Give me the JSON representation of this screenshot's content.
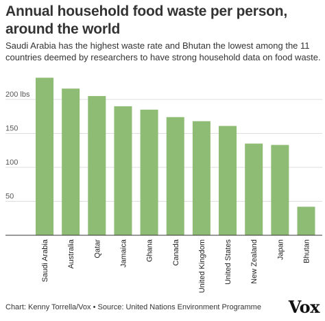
{
  "chart_data": {
    "type": "bar",
    "title": "Annual household food waste per person, around the world",
    "subtitle": "Saudi Arabia has the highest waste rate and Bhutan the lowest among the 11 countries deemed by researchers to have strong household data on food waste.",
    "categories": [
      "Saudi Arabia",
      "Australia",
      "Qatar",
      "Jamaica",
      "Ghana",
      "Canada",
      "United Kingdom",
      "United States",
      "New Zealand",
      "Japan",
      "Bhutan"
    ],
    "values": [
      232,
      216,
      205,
      190,
      185,
      174,
      168,
      161,
      135,
      133,
      42
    ],
    "ylim": [
      0,
      245
    ],
    "yticks": [
      50,
      100,
      150,
      200
    ],
    "ytick_labels": [
      "50",
      "100",
      "150",
      "200 lbs"
    ],
    "grid": true,
    "bar_color": "#8fbc74"
  },
  "footer": {
    "credit": "Chart: Kenny Torrella/Vox • Source: United Nations Environment Programme",
    "logo": "Vox"
  }
}
